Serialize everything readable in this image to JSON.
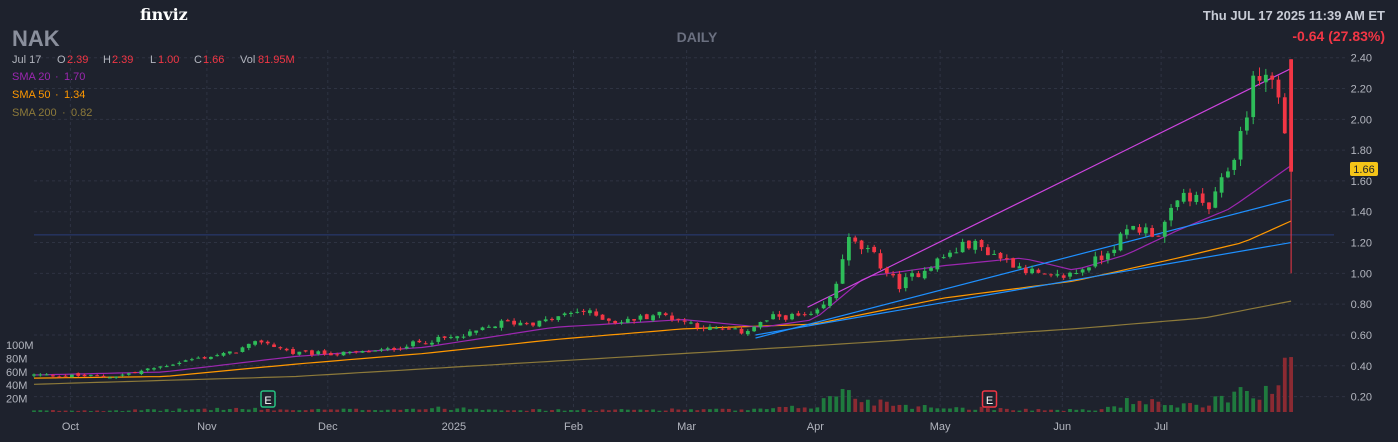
{
  "header": {
    "brand": "finviz",
    "ticker": "NAK",
    "period": "DAILY",
    "timestamp": "Thu JUL 17 2025 11:39 AM ET",
    "change": "-0.64 (27.83%)"
  },
  "ohlc": {
    "date": "Jul 17",
    "open_label": "O",
    "open": "2.39",
    "high_label": "H",
    "high": "2.39",
    "low_label": "L",
    "low": "1.00",
    "close_label": "C",
    "close": "1.66",
    "vol_label": "Vol",
    "volume": "81.95M"
  },
  "sma": [
    {
      "label": "SMA 20",
      "value": "1.70",
      "color": "#9c27b0"
    },
    {
      "label": "SMA 50",
      "value": "1.34",
      "color": "#ff9800"
    },
    {
      "label": "SMA 200",
      "value": "0.82",
      "color": "#8d7a3a"
    }
  ],
  "last_price_badge": "1.66",
  "colors": {
    "up": "#26a69a",
    "upBright": "#2ebd59",
    "down": "#f23645",
    "bg": "#1e222d",
    "trend": "#cc44dd",
    "support": "#1e90ff"
  },
  "chart_data": {
    "type": "candlestick",
    "ylim": [
      0.1,
      2.45
    ],
    "y_ticks": [
      "2.40",
      "2.20",
      "2.00",
      "1.80",
      "1.60",
      "1.40",
      "1.20",
      "1.00",
      "0.80",
      "0.60",
      "0.40",
      "0.20"
    ],
    "x_ticks": [
      "Oct",
      "Nov",
      "Dec",
      "2025",
      "Feb",
      "Mar",
      "Apr",
      "May",
      "Jun",
      "Jul"
    ],
    "volume_ticks": [
      "100M",
      "80M",
      "60M",
      "40M",
      "20M"
    ],
    "volume_ylim": [
      0,
      100
    ],
    "earnings_markers": [
      {
        "label": "E",
        "date": "Nov",
        "color": "#26c281"
      },
      {
        "label": "E",
        "date": "May",
        "color": "#f23645"
      }
    ],
    "horizontal_line": 1.25,
    "trendlines": [
      {
        "name": "resistance",
        "from": [
          0.595,
          0.78
        ],
        "to": [
          0.967,
          2.33
        ]
      },
      {
        "name": "support-1",
        "from": [
          0.555,
          0.58
        ],
        "to": [
          0.967,
          1.48
        ]
      },
      {
        "name": "support-2",
        "from": [
          0.555,
          0.6
        ],
        "to": [
          0.967,
          1.2
        ]
      }
    ],
    "price_anchors": [
      [
        0.0,
        0.34
      ],
      [
        0.06,
        0.33
      ],
      [
        0.08,
        0.36
      ],
      [
        0.12,
        0.44
      ],
      [
        0.15,
        0.48
      ],
      [
        0.175,
        0.56
      ],
      [
        0.2,
        0.48
      ],
      [
        0.24,
        0.48
      ],
      [
        0.27,
        0.5
      ],
      [
        0.3,
        0.56
      ],
      [
        0.33,
        0.59
      ],
      [
        0.36,
        0.68
      ],
      [
        0.39,
        0.68
      ],
      [
        0.42,
        0.76
      ],
      [
        0.45,
        0.68
      ],
      [
        0.48,
        0.74
      ],
      [
        0.52,
        0.64
      ],
      [
        0.545,
        0.62
      ],
      [
        0.57,
        0.72
      ],
      [
        0.6,
        0.72
      ],
      [
        0.615,
        0.86
      ],
      [
        0.625,
        1.22
      ],
      [
        0.645,
        1.12
      ],
      [
        0.665,
        0.92
      ],
      [
        0.69,
        1.06
      ],
      [
        0.72,
        1.2
      ],
      [
        0.745,
        1.1
      ],
      [
        0.78,
        0.96
      ],
      [
        0.8,
        1.0
      ],
      [
        0.82,
        1.1
      ],
      [
        0.845,
        1.3
      ],
      [
        0.865,
        1.26
      ],
      [
        0.885,
        1.52
      ],
      [
        0.905,
        1.42
      ],
      [
        0.925,
        1.8
      ],
      [
        0.94,
        2.3
      ],
      [
        0.955,
        2.25
      ],
      [
        0.967,
        1.66
      ]
    ],
    "volume_anchors": [
      [
        0.0,
        2
      ],
      [
        0.1,
        3
      ],
      [
        0.15,
        5
      ],
      [
        0.2,
        3
      ],
      [
        0.27,
        4
      ],
      [
        0.33,
        6
      ],
      [
        0.38,
        3
      ],
      [
        0.45,
        3
      ],
      [
        0.5,
        4
      ],
      [
        0.55,
        3
      ],
      [
        0.6,
        8
      ],
      [
        0.62,
        30
      ],
      [
        0.64,
        18
      ],
      [
        0.68,
        8
      ],
      [
        0.72,
        6
      ],
      [
        0.78,
        3
      ],
      [
        0.82,
        3
      ],
      [
        0.85,
        20
      ],
      [
        0.87,
        8
      ],
      [
        0.9,
        10
      ],
      [
        0.92,
        28
      ],
      [
        0.94,
        38
      ],
      [
        0.955,
        20
      ],
      [
        0.967,
        82
      ]
    ],
    "sma20_anchors": [
      [
        0.0,
        0.34
      ],
      [
        0.1,
        0.36
      ],
      [
        0.2,
        0.46
      ],
      [
        0.3,
        0.52
      ],
      [
        0.4,
        0.65
      ],
      [
        0.5,
        0.7
      ],
      [
        0.56,
        0.65
      ],
      [
        0.6,
        0.7
      ],
      [
        0.64,
        0.98
      ],
      [
        0.7,
        1.05
      ],
      [
        0.76,
        1.1
      ],
      [
        0.8,
        1.02
      ],
      [
        0.84,
        1.12
      ],
      [
        0.88,
        1.28
      ],
      [
        0.92,
        1.42
      ],
      [
        0.967,
        1.7
      ]
    ],
    "sma50_anchors": [
      [
        0.0,
        0.32
      ],
      [
        0.1,
        0.33
      ],
      [
        0.2,
        0.41
      ],
      [
        0.3,
        0.48
      ],
      [
        0.4,
        0.57
      ],
      [
        0.5,
        0.64
      ],
      [
        0.6,
        0.67
      ],
      [
        0.7,
        0.84
      ],
      [
        0.8,
        0.95
      ],
      [
        0.88,
        1.1
      ],
      [
        0.93,
        1.2
      ],
      [
        0.967,
        1.34
      ]
    ],
    "sma200_anchors": [
      [
        0.0,
        0.28
      ],
      [
        0.2,
        0.33
      ],
      [
        0.4,
        0.43
      ],
      [
        0.6,
        0.53
      ],
      [
        0.8,
        0.64
      ],
      [
        0.9,
        0.71
      ],
      [
        0.967,
        0.82
      ]
    ]
  }
}
